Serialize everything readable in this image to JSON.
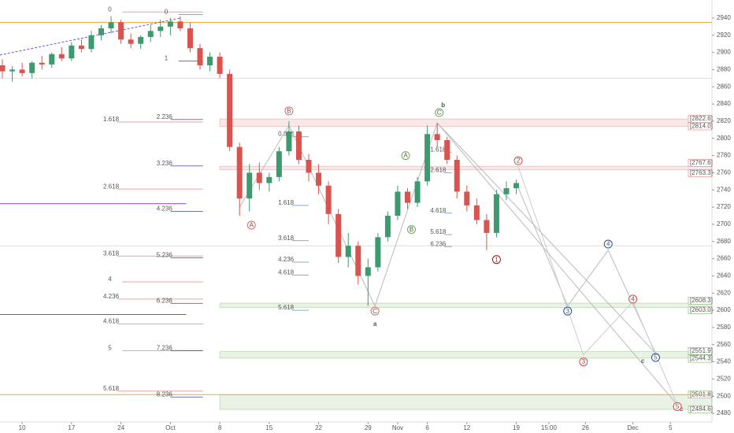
{
  "chart_data": {
    "type": "candlestick",
    "ylim": [
      2470,
      2961
    ],
    "xlim": [
      -2.24,
      69.8
    ],
    "yticks": [
      2480,
      2500,
      2520,
      2540,
      2560,
      2580,
      2600,
      2620,
      2640,
      2660,
      2680,
      2700,
      2720,
      2740,
      2760,
      2780,
      2800,
      2820,
      2840,
      2860,
      2880,
      2900,
      2920,
      2940
    ],
    "xticks": [
      {
        "value": 0,
        "label": "10"
      },
      {
        "value": 5,
        "label": "17"
      },
      {
        "value": 10,
        "label": "24"
      },
      {
        "value": 15,
        "label": "Oct"
      },
      {
        "value": 20,
        "label": "8"
      },
      {
        "value": 25,
        "label": "15"
      },
      {
        "value": 30,
        "label": "22"
      },
      {
        "value": 35,
        "label": "29"
      },
      {
        "value": 38,
        "label": "Nov"
      },
      {
        "value": 41,
        "label": "6"
      },
      {
        "value": 45,
        "label": "12"
      },
      {
        "value": 50,
        "label": "19"
      },
      {
        "value": 53.3,
        "label": "15:00"
      },
      {
        "value": 57,
        "label": "26"
      },
      {
        "value": 61.8,
        "label": "Dec"
      },
      {
        "value": 65.6,
        "label": "5"
      }
    ],
    "up_color": "#3d9a6e",
    "down_color": "#d9534f",
    "x": [
      -2,
      -1,
      0,
      1,
      2,
      3,
      4,
      5,
      6,
      7,
      8,
      9,
      10,
      11,
      12,
      13,
      14,
      15,
      16,
      17,
      18,
      19,
      20,
      21,
      22,
      23,
      24,
      25,
      26,
      27,
      28,
      29,
      30,
      31,
      32,
      33,
      34,
      35,
      36,
      37,
      38,
      39,
      40,
      41,
      42,
      43,
      44,
      45,
      46,
      47,
      48,
      49,
      50
    ],
    "candles": [
      [
        2885,
        2892,
        2870,
        2878
      ],
      [
        2878,
        2884,
        2866,
        2880
      ],
      [
        2880,
        2888,
        2872,
        2876
      ],
      [
        2876,
        2890,
        2870,
        2888
      ],
      [
        2888,
        2896,
        2880,
        2886
      ],
      [
        2886,
        2900,
        2882,
        2898
      ],
      [
        2898,
        2906,
        2890,
        2893
      ],
      [
        2893,
        2912,
        2890,
        2908
      ],
      [
        2908,
        2915,
        2900,
        2904
      ],
      [
        2904,
        2925,
        2900,
        2920
      ],
      [
        2920,
        2932,
        2914,
        2928
      ],
      [
        2928,
        2942,
        2922,
        2935
      ],
      [
        2935,
        2938,
        2910,
        2915
      ],
      [
        2915,
        2922,
        2905,
        2910
      ],
      [
        2910,
        2920,
        2904,
        2918
      ],
      [
        2918,
        2932,
        2912,
        2925
      ],
      [
        2925,
        2938,
        2918,
        2930
      ],
      [
        2930,
        2940,
        2920,
        2936
      ],
      [
        2936,
        2942,
        2925,
        2928
      ],
      [
        2928,
        2935,
        2900,
        2905
      ],
      [
        2905,
        2910,
        2880,
        2885
      ],
      [
        2885,
        2900,
        2878,
        2895
      ],
      [
        2895,
        2900,
        2870,
        2875
      ],
      [
        2875,
        2880,
        2785,
        2790
      ],
      [
        2790,
        2795,
        2710,
        2730
      ],
      [
        2730,
        2770,
        2715,
        2760
      ],
      [
        2760,
        2772,
        2740,
        2748
      ],
      [
        2748,
        2760,
        2738,
        2755
      ],
      [
        2755,
        2790,
        2750,
        2785
      ],
      [
        2785,
        2820,
        2780,
        2808
      ],
      [
        2808,
        2815,
        2770,
        2775
      ],
      [
        2775,
        2782,
        2750,
        2760
      ],
      [
        2760,
        2770,
        2735,
        2745
      ],
      [
        2745,
        2750,
        2700,
        2712
      ],
      [
        2712,
        2718,
        2655,
        2662
      ],
      [
        2662,
        2690,
        2650,
        2675
      ],
      [
        2675,
        2680,
        2630,
        2640
      ],
      [
        2640,
        2660,
        2605,
        2650
      ],
      [
        2650,
        2690,
        2645,
        2685
      ],
      [
        2685,
        2715,
        2680,
        2710
      ],
      [
        2710,
        2745,
        2705,
        2738
      ],
      [
        2738,
        2742,
        2718,
        2725
      ],
      [
        2725,
        2755,
        2720,
        2750
      ],
      [
        2750,
        2815,
        2745,
        2805
      ],
      [
        2805,
        2818,
        2790,
        2798
      ],
      [
        2798,
        2802,
        2770,
        2775
      ],
      [
        2775,
        2780,
        2730,
        2738
      ],
      [
        2738,
        2745,
        2715,
        2722
      ],
      [
        2722,
        2730,
        2700,
        2705
      ],
      [
        2705,
        2712,
        2670,
        2690
      ],
      [
        2690,
        2740,
        2685,
        2735
      ],
      [
        2735,
        2750,
        2728,
        2742
      ],
      [
        2742,
        2752,
        2735,
        2748
      ]
    ],
    "zones": [
      {
        "top": 2822.6,
        "bottom": 2814.0,
        "labels": [
          "[2822.6]",
          "[2814.0]"
        ],
        "color": "#e06666"
      },
      {
        "top": 2767.6,
        "bottom": 2763.3,
        "labels": [
          "[2767.6]",
          "[2763.3]"
        ],
        "color": "#e06666"
      },
      {
        "top": 2608.3,
        "bottom": 2603.0,
        "labels": [
          "[2608.3]",
          "[2603.0]"
        ],
        "color": "#6aa84f"
      },
      {
        "top": 2551.9,
        "bottom": 2544.3,
        "labels": [
          "[2551.9]",
          "[2544.3]"
        ],
        "color": "#6aa84f"
      },
      {
        "top": 2501.8,
        "bottom": 2484.6,
        "labels": [
          "[2501.8]",
          "[2484.6]"
        ],
        "color": "#6aa84f"
      }
    ],
    "hlines": [
      {
        "y": 2935,
        "x0": -2.24,
        "x1": 69.8,
        "color": "#f0a830"
      },
      {
        "y": 2501.8,
        "x0": -2.24,
        "x1": 69.8,
        "color": "#f0a830"
      },
      {
        "y": 2870,
        "x0": -2.24,
        "x1": 69.8,
        "color": "#dddddd"
      },
      {
        "y": 2675,
        "x0": -2.24,
        "x1": 69.8,
        "color": "#dddddd"
      },
      {
        "y": 2724,
        "x0": -2.24,
        "x1": 16.6,
        "color": "#8e44ad"
      },
      {
        "y": 2595,
        "x0": -2.24,
        "x1": 16.6,
        "color": "#8e44ad"
      }
    ],
    "fibs": [
      {
        "label": "0",
        "x": 8.7,
        "y": 2947,
        "color": "#e06666",
        "x1": 18.3
      },
      {
        "label": "0",
        "x": 14.4,
        "y": 2944,
        "color": "#666666",
        "x1": 18.3
      },
      {
        "label": "1",
        "x": 14.4,
        "y": 2890,
        "color": "#1a1a80",
        "x1": 18.3
      },
      {
        "label": "1.618",
        "x": 8.2,
        "y": 2819,
        "color": "#e06666",
        "x1": 18.3
      },
      {
        "label": "2.236",
        "x": 13.6,
        "y": 2822,
        "color": "#1a1a80",
        "x1": 18.3
      },
      {
        "label": "3.236",
        "x": 13.6,
        "y": 2768,
        "color": "#1a1a80",
        "x1": 18.3
      },
      {
        "label": "2.618",
        "x": 8.2,
        "y": 2741,
        "color": "#e06666",
        "x1": 18.3
      },
      {
        "label": "4.236",
        "x": 13.6,
        "y": 2715,
        "color": "#1a1a80",
        "x1": 18.3
      },
      {
        "label": "3.618",
        "x": 8.2,
        "y": 2663,
        "color": "#e06666",
        "x1": 18.3
      },
      {
        "label": "5.236",
        "x": 13.6,
        "y": 2661,
        "color": "#1a1a80",
        "x1": 18.3
      },
      {
        "label": "4",
        "x": 8.7,
        "y": 2633,
        "color": "#e06666",
        "x1": 18.3
      },
      {
        "label": "4.236",
        "x": 8.2,
        "y": 2613,
        "color": "#e06666",
        "x1": 18.3
      },
      {
        "label": "6.236",
        "x": 13.6,
        "y": 2608,
        "color": "#1a1a80",
        "x1": 18.3
      },
      {
        "label": "4.618",
        "x": 8.2,
        "y": 2584,
        "color": "#e06666",
        "x1": 18.3
      },
      {
        "label": "5",
        "x": 8.7,
        "y": 2553,
        "color": "#e06666",
        "x1": 18.3
      },
      {
        "label": "7.236",
        "x": 13.6,
        "y": 2553,
        "color": "#1a1a80",
        "x1": 18.3
      },
      {
        "label": "5.618",
        "x": 8.2,
        "y": 2506,
        "color": "#e06666",
        "x1": 18.3
      },
      {
        "label": "8.236",
        "x": 13.6,
        "y": 2499,
        "color": "#1a1a80",
        "x1": 18.3
      },
      {
        "label": "0.618",
        "x": 25.9,
        "y": 2802,
        "color": "#3d6fb5",
        "x1": 29
      },
      {
        "label": "1.618",
        "x": 25.9,
        "y": 2722,
        "color": "#3d6fb5",
        "x1": 29
      },
      {
        "label": "3.618",
        "x": 25.9,
        "y": 2681,
        "color": "#3d6fb5",
        "x1": 29
      },
      {
        "label": "4.236",
        "x": 25.9,
        "y": 2656,
        "color": "#3d6fb5",
        "x1": 29
      },
      {
        "label": "4.618",
        "x": 25.9,
        "y": 2641,
        "color": "#3d6fb5",
        "x1": 29
      },
      {
        "label": "5.618",
        "x": 25.9,
        "y": 2600,
        "color": "#3d6fb5",
        "x1": 29
      },
      {
        "label": "1.618",
        "x": 41.3,
        "y": 2784,
        "color": "#3d6fb5",
        "x1": 43.5
      },
      {
        "label": "2.618",
        "x": 41.3,
        "y": 2760,
        "color": "#3d6fb5",
        "x1": 43.5
      },
      {
        "label": "4.618",
        "x": 41.3,
        "y": 2713,
        "color": "#3d6fb5",
        "x1": 43.5
      },
      {
        "label": "5.618",
        "x": 41.3,
        "y": 2688,
        "color": "#3d6fb5",
        "x1": 43.5
      },
      {
        "label": "6.236",
        "x": 41.3,
        "y": 2674,
        "color": "#3d6fb5",
        "x1": 43.5
      }
    ],
    "paths": [
      {
        "color": "#bbbbbb",
        "x": [
          50,
          55.2,
          59.3,
          64.1
        ],
        "y": [
          2748,
          2605,
          2670,
          2550
        ]
      },
      {
        "color": "#cccccc",
        "x": [
          50.2,
          56.8,
          61.8,
          66.3
        ],
        "y": [
          2767,
          2548,
          2610,
          2490
        ]
      },
      {
        "color": "#bbbbbb",
        "x": [
          42,
          64.1
        ],
        "y": [
          2818,
          2550
        ]
      },
      {
        "color": "#bbbbbb",
        "x": [
          42,
          66.3
        ],
        "y": [
          2818,
          2490
        ]
      },
      {
        "color": "#bbbbbb",
        "x": [
          22,
          27,
          35.7,
          42
        ],
        "y": [
          2720,
          2815,
          2605,
          2818
        ]
      }
    ],
    "trendline": {
      "color": "#6a5acd",
      "x": [
        -2.24,
        16
      ],
      "y": [
        2897,
        2940
      ]
    },
    "annotations": [
      {
        "text": "b",
        "x": 42.6,
        "y": 2839,
        "color": "#a01515",
        "circle": false
      },
      {
        "text": "a",
        "x": 35.7,
        "y": 2584,
        "color": "#a01515",
        "circle": false
      },
      {
        "text": "c",
        "x": 62.8,
        "y": 2541,
        "color": "#1f4e9c",
        "circle": false
      },
      {
        "text": "c",
        "x": 66.7,
        "y": 2485,
        "color": "#a01515",
        "circle": false
      },
      {
        "text": "B",
        "x": 27,
        "y": 2832,
        "color": "#e06666",
        "circle": true
      },
      {
        "text": "A",
        "x": 23.2,
        "y": 2699,
        "color": "#e06666",
        "circle": true
      },
      {
        "text": "C",
        "x": 35.7,
        "y": 2599,
        "color": "#e06666",
        "circle": true
      },
      {
        "text": "A",
        "x": 38.8,
        "y": 2780,
        "color": "#6aa84f",
        "circle": true
      },
      {
        "text": "B",
        "x": 39.4,
        "y": 2694,
        "color": "#6aa84f",
        "circle": true
      },
      {
        "text": "C",
        "x": 42.2,
        "y": 2830,
        "color": "#6aa84f",
        "circle": true
      },
      {
        "text": "1",
        "x": 48,
        "y": 2659,
        "color": "#a01515",
        "circle": true
      },
      {
        "text": "2",
        "x": 50.2,
        "y": 2774,
        "color": "#e04040",
        "circle": true
      },
      {
        "text": "3",
        "x": 56.8,
        "y": 2540,
        "color": "#e04040",
        "circle": true
      },
      {
        "text": "4",
        "x": 61.8,
        "y": 2613,
        "color": "#e04040",
        "circle": true
      },
      {
        "text": "5",
        "x": 66.3,
        "y": 2488,
        "color": "#e04040",
        "circle": true
      },
      {
        "text": "3",
        "x": 55.2,
        "y": 2599,
        "color": "#1f4e9c",
        "circle": true
      },
      {
        "text": "4",
        "x": 59.3,
        "y": 2677,
        "color": "#1f4e9c",
        "circle": true
      },
      {
        "text": "5",
        "x": 64.1,
        "y": 2545,
        "color": "#1f4e9c",
        "circle": true
      }
    ]
  }
}
